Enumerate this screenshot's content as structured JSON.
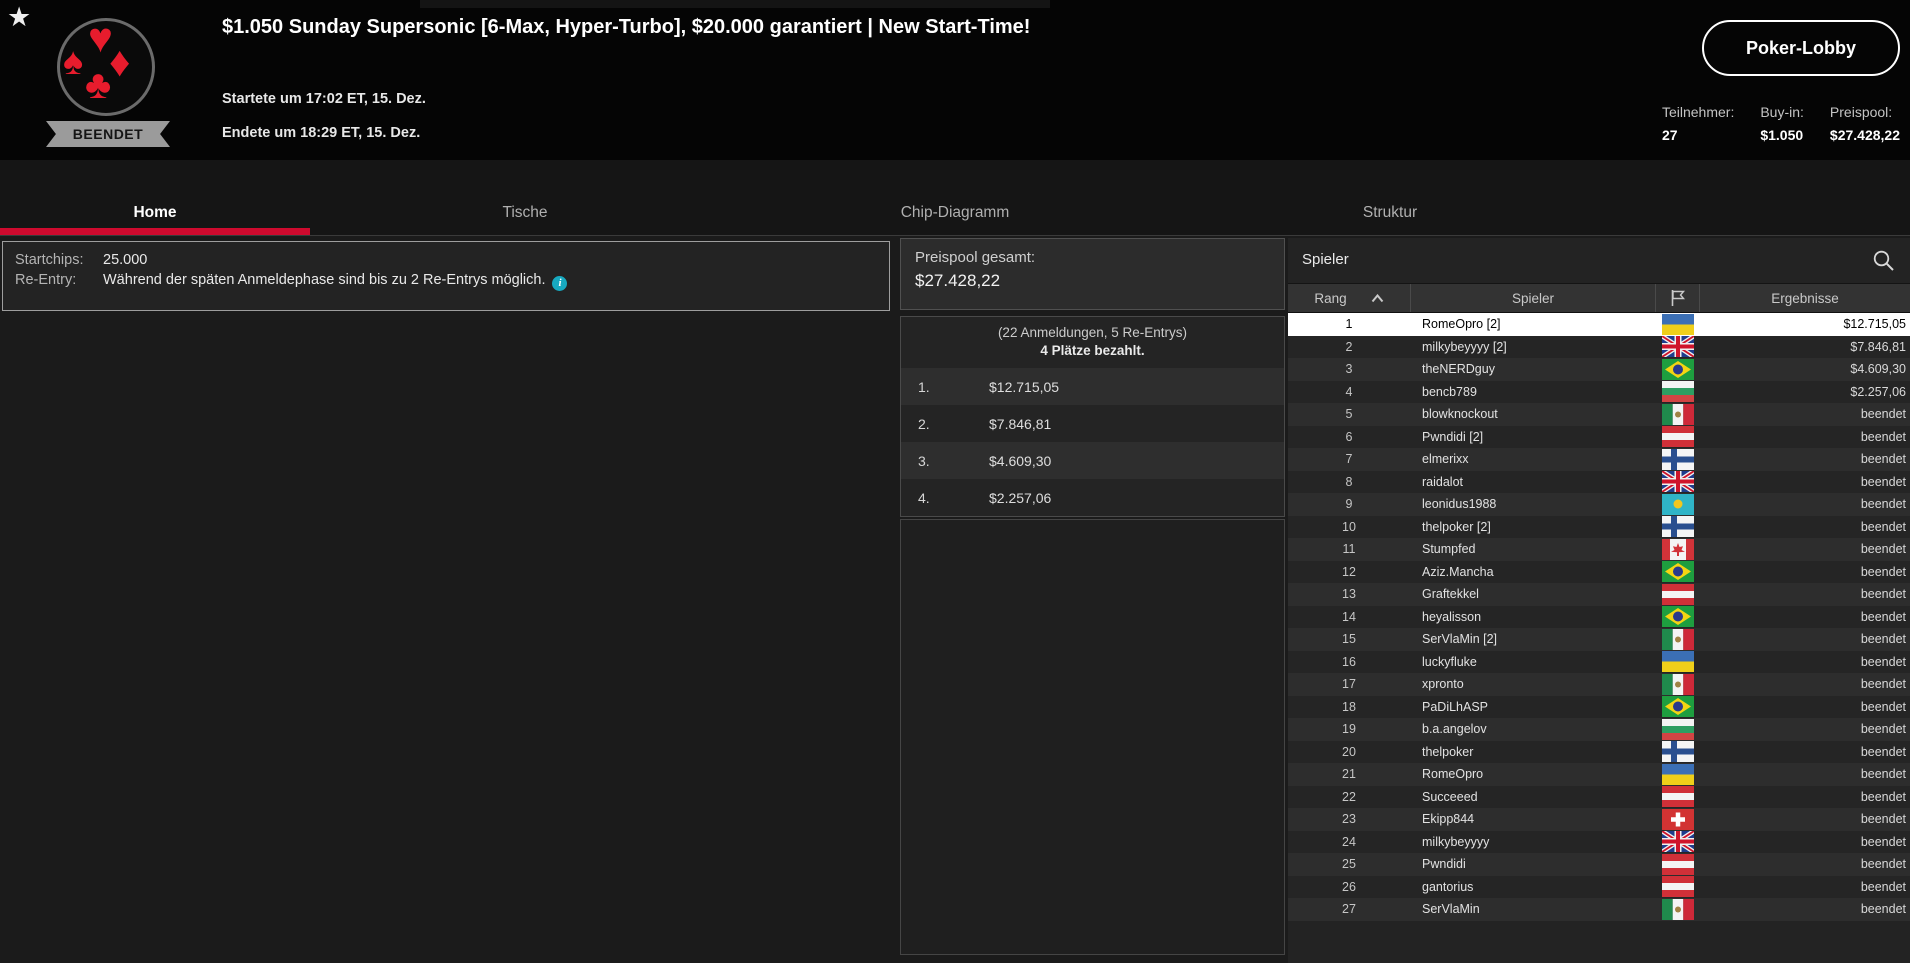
{
  "colors": {
    "accent_red": "#ce0a2e",
    "suit_red": "#e81c2d",
    "info_cyan": "#17a9c0",
    "badge_gray": "#9b9b9b",
    "selected_row": "#ffffff"
  },
  "icons": {
    "favorite": "star",
    "search": "magnifier",
    "sort": "chevron-up",
    "flag_column": "flag-outline",
    "info": "info-circle",
    "logo_suits": [
      "heart",
      "spade",
      "diamond",
      "club"
    ]
  },
  "header": {
    "title": "$1.050 Sunday Supersonic [6-Max, Hyper-Turbo], $20.000 garantiert | New Start-Time!",
    "status_badge": "BEENDET",
    "started": "Startete um 17:02 ET, 15. Dez.",
    "ended": "Endete um 18:29 ET, 15. Dez.",
    "lobby_button": "Poker-Lobby",
    "stats": [
      {
        "label": "Teilnehmer:",
        "value": "27"
      },
      {
        "label": "Buy-in:",
        "value": "$1.050"
      },
      {
        "label": "Preispool:",
        "value": "$27.428,22"
      }
    ]
  },
  "tabs": [
    {
      "label": "Home",
      "active": true
    },
    {
      "label": "Tische",
      "active": false
    },
    {
      "label": "Chip-Diagramm",
      "active": false
    },
    {
      "label": "Struktur",
      "active": false
    }
  ],
  "info_box": {
    "startchips_label": "Startchips:",
    "startchips_value": "25.000",
    "reentry_label": "Re-Entry:",
    "reentry_text": "Während der späten Anmeldephase sind bis zu 2 Re-Entrys möglich.",
    "info_icon_glyph": "i"
  },
  "prizepool": {
    "total_label": "Preispool gesamt:",
    "total_value": "$27.428,22",
    "registrations": "(22 Anmeldungen, 5 Re-Entrys)",
    "places_paid": "4 Plätze bezahlt.",
    "payouts": [
      {
        "place": "1.",
        "amount": "$12.715,05"
      },
      {
        "place": "2.",
        "amount": "$7.846,81"
      },
      {
        "place": "3.",
        "amount": "$4.609,30"
      },
      {
        "place": "4.",
        "amount": "$2.257,06"
      }
    ]
  },
  "players_panel": {
    "title": "Spieler",
    "columns": {
      "rank": "Rang",
      "player": "Spieler",
      "results": "Ergebnisse"
    },
    "rows": [
      {
        "rank": "1",
        "name": "RomeOpro [2]",
        "flag": "ukraine",
        "result": "$12.715,05",
        "selected": true
      },
      {
        "rank": "2",
        "name": "milkybeyyyy [2]",
        "flag": "uk",
        "result": "$7.846,81",
        "selected": false
      },
      {
        "rank": "3",
        "name": "theNERDguy",
        "flag": "brazil",
        "result": "$4.609,30",
        "selected": false
      },
      {
        "rank": "4",
        "name": "bencb789",
        "flag": "bulgaria",
        "result": "$2.257,06",
        "selected": false
      },
      {
        "rank": "5",
        "name": "blowknockout",
        "flag": "mexico",
        "result": "beendet",
        "selected": false
      },
      {
        "rank": "6",
        "name": "Pwndidi [2]",
        "flag": "austria",
        "result": "beendet",
        "selected": false
      },
      {
        "rank": "7",
        "name": "elmerixx",
        "flag": "finland",
        "result": "beendet",
        "selected": false
      },
      {
        "rank": "8",
        "name": "raidalot",
        "flag": "uk",
        "result": "beendet",
        "selected": false
      },
      {
        "rank": "9",
        "name": "leonidus1988",
        "flag": "kazakhstan",
        "result": "beendet",
        "selected": false
      },
      {
        "rank": "10",
        "name": "thelpoker [2]",
        "flag": "finland",
        "result": "beendet",
        "selected": false
      },
      {
        "rank": "11",
        "name": "Stumpfed",
        "flag": "canada",
        "result": "beendet",
        "selected": false
      },
      {
        "rank": "12",
        "name": "Aziz.Mancha",
        "flag": "brazil",
        "result": "beendet",
        "selected": false
      },
      {
        "rank": "13",
        "name": "Graftekkel",
        "flag": "austria",
        "result": "beendet",
        "selected": false
      },
      {
        "rank": "14",
        "name": "heyalisson",
        "flag": "brazil",
        "result": "beendet",
        "selected": false
      },
      {
        "rank": "15",
        "name": "SerVlaMin [2]",
        "flag": "mexico",
        "result": "beendet",
        "selected": false
      },
      {
        "rank": "16",
        "name": "luckyfluke",
        "flag": "ukraine",
        "result": "beendet",
        "selected": false
      },
      {
        "rank": "17",
        "name": "xpronto",
        "flag": "mexico",
        "result": "beendet",
        "selected": false
      },
      {
        "rank": "18",
        "name": "PaDiLhASP",
        "flag": "brazil",
        "result": "beendet",
        "selected": false
      },
      {
        "rank": "19",
        "name": "b.a.angelov",
        "flag": "bulgaria",
        "result": "beendet",
        "selected": false
      },
      {
        "rank": "20",
        "name": "thelpoker",
        "flag": "finland",
        "result": "beendet",
        "selected": false
      },
      {
        "rank": "21",
        "name": "RomeOpro",
        "flag": "ukraine",
        "result": "beendet",
        "selected": false
      },
      {
        "rank": "22",
        "name": "Succeeed",
        "flag": "austria",
        "result": "beendet",
        "selected": false
      },
      {
        "rank": "23",
        "name": "Ekipp844",
        "flag": "switzerland",
        "result": "beendet",
        "selected": false
      },
      {
        "rank": "24",
        "name": "milkybeyyyy",
        "flag": "uk",
        "result": "beendet",
        "selected": false
      },
      {
        "rank": "25",
        "name": "Pwndidi",
        "flag": "austria",
        "result": "beendet",
        "selected": false
      },
      {
        "rank": "26",
        "name": "gantorius",
        "flag": "austria",
        "result": "beendet",
        "selected": false
      },
      {
        "rank": "27",
        "name": "SerVlaMin",
        "flag": "mexico",
        "result": "beendet",
        "selected": false
      }
    ]
  }
}
